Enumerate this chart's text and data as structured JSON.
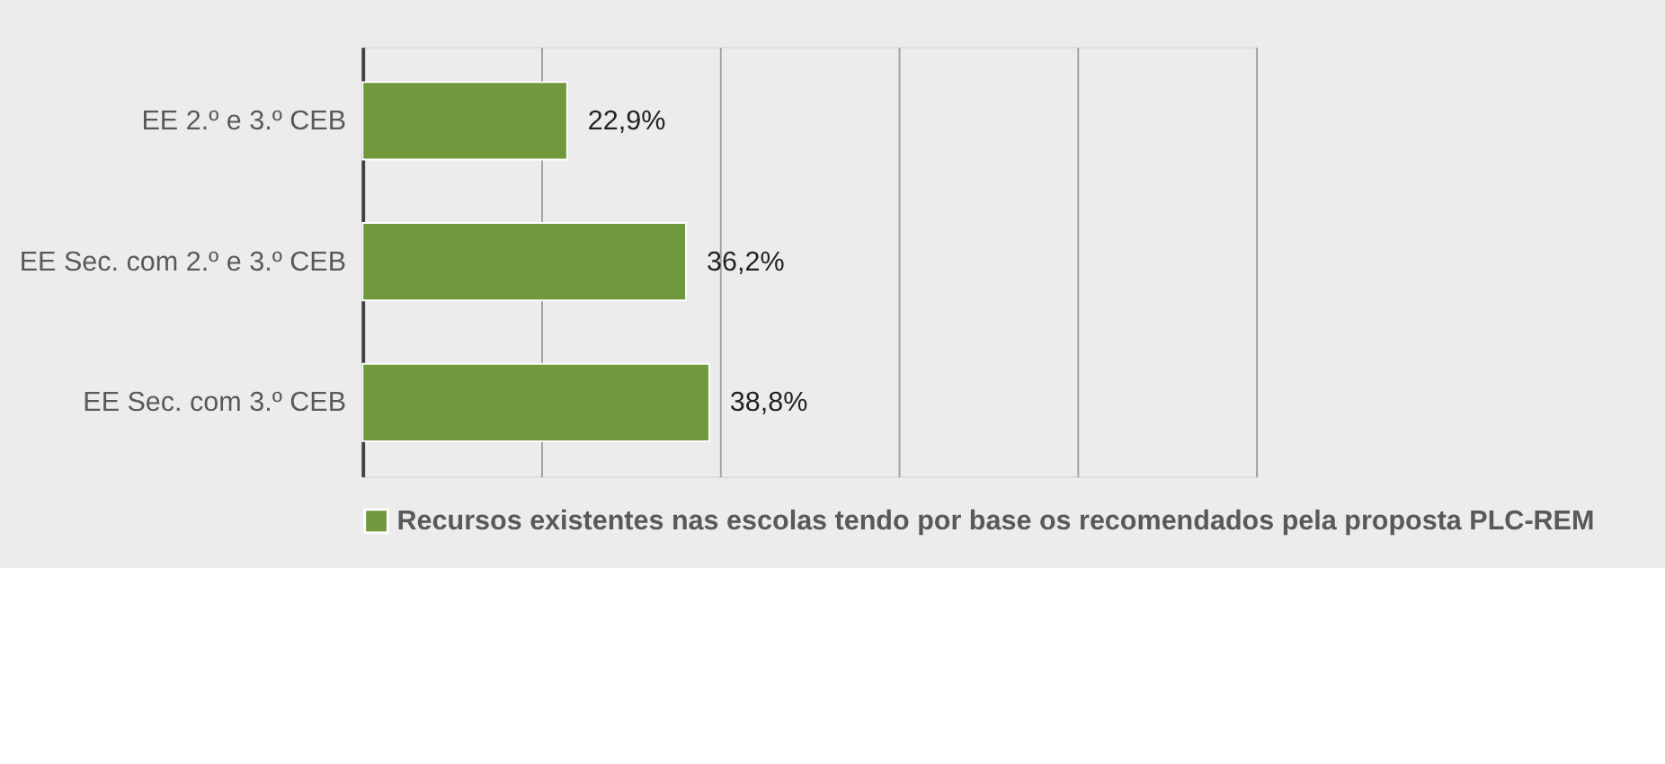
{
  "chart_data": {
    "type": "bar",
    "orientation": "horizontal",
    "categories": [
      "EE 2.º e 3.º CEB",
      "EE Sec. com 2.º e 3.º CEB",
      "EE Sec. com 3.º CEB"
    ],
    "series": [
      {
        "name": "Recursos existentes nas escolas tendo por base os recomendados pela proposta PLC-REM",
        "color": "#70983c",
        "values": [
          22.9,
          36.2,
          38.8
        ],
        "value_labels": [
          "22,9%",
          "36,2%",
          "38,8%"
        ]
      }
    ],
    "xlim": [
      0,
      100
    ],
    "xticks": [
      {
        "value": 0,
        "label": null
      },
      {
        "value": 20,
        "label": null
      },
      {
        "value": 40,
        "label": null
      },
      {
        "value": 60,
        "label": null
      },
      {
        "value": 80,
        "label": null
      },
      {
        "value": 100,
        "label": null
      }
    ],
    "grid": "x",
    "tick_labels": "y",
    "legend": "bottom"
  }
}
